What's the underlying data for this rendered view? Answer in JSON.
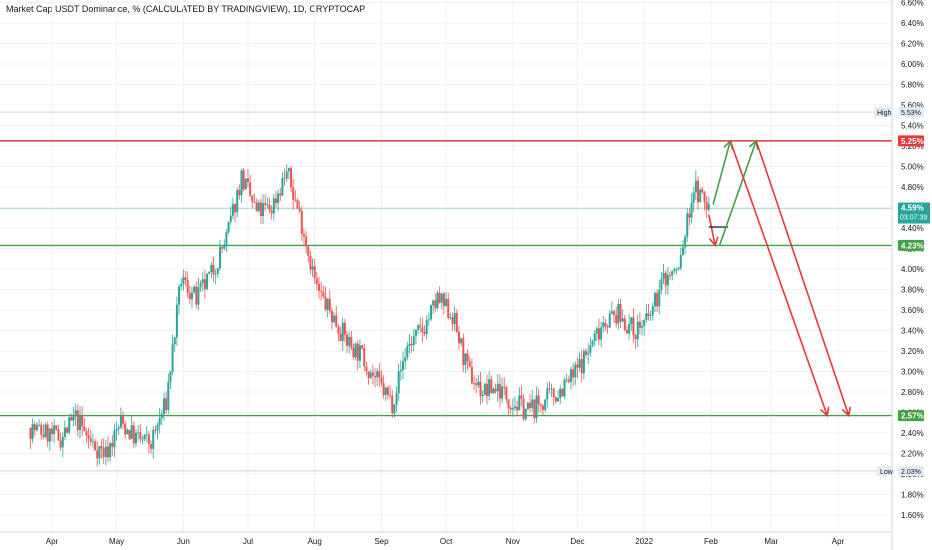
{
  "title": "Market Cap USDT Dominance, % (CALCULATED BY TRADINGVIEW), 1D, CRYPTOCAP",
  "colors": {
    "up": "#26a69a",
    "down": "#ef5350",
    "resistance": "#e53935",
    "support": "#43a047",
    "arrow_down": "#e53935",
    "arrow_up": "#43a047",
    "grid": "#eef0f3",
    "axis_border": "#d1d4dc",
    "high_low_line": "#c8d6e5",
    "current_tag": "#26a69a"
  },
  "chart_data": {
    "type": "candlestick",
    "x_tick_labels": [
      "Apr",
      "May",
      "Jun",
      "Jul",
      "Aug",
      "Sep",
      "Oct",
      "Nov",
      "Dec",
      "2022",
      "Feb",
      "Mar",
      "Apr"
    ],
    "y_tick_labels": [
      "1.60%",
      "1.80%",
      "2.00%",
      "2.20%",
      "2.40%",
      "2.60%",
      "2.80%",
      "3.00%",
      "3.20%",
      "3.40%",
      "3.60%",
      "3.80%",
      "4.00%",
      "4.20%",
      "4.40%",
      "4.60%",
      "4.80%",
      "5.00%",
      "5.20%",
      "5.40%",
      "5.60%",
      "5.80%",
      "6.00%",
      "6.20%",
      "6.40%",
      "6.60%"
    ],
    "y_range": [
      1.45,
      6.65
    ],
    "close_path": [
      {
        "date": "2021-03-22",
        "close": 2.45
      },
      {
        "date": "2021-04-05",
        "close": 2.35
      },
      {
        "date": "2021-04-12",
        "close": 2.55
      },
      {
        "date": "2021-04-19",
        "close": 2.3
      },
      {
        "date": "2021-04-26",
        "close": 2.2
      },
      {
        "date": "2021-05-03",
        "close": 2.5
      },
      {
        "date": "2021-05-10",
        "close": 2.35
      },
      {
        "date": "2021-05-17",
        "close": 2.3
      },
      {
        "date": "2021-05-24",
        "close": 2.7
      },
      {
        "date": "2021-05-31",
        "close": 3.9
      },
      {
        "date": "2021-06-07",
        "close": 3.7
      },
      {
        "date": "2021-06-14",
        "close": 3.95
      },
      {
        "date": "2021-06-21",
        "close": 4.3
      },
      {
        "date": "2021-06-28",
        "close": 4.9
      },
      {
        "date": "2021-07-05",
        "close": 4.55
      },
      {
        "date": "2021-07-12",
        "close": 4.6
      },
      {
        "date": "2021-07-19",
        "close": 4.95
      },
      {
        "date": "2021-07-26",
        "close": 4.45
      },
      {
        "date": "2021-08-02",
        "close": 3.8
      },
      {
        "date": "2021-08-09",
        "close": 3.55
      },
      {
        "date": "2021-08-16",
        "close": 3.3
      },
      {
        "date": "2021-08-23",
        "close": 3.15
      },
      {
        "date": "2021-08-30",
        "close": 2.9
      },
      {
        "date": "2021-09-06",
        "close": 2.7
      },
      {
        "date": "2021-09-13",
        "close": 3.25
      },
      {
        "date": "2021-09-20",
        "close": 3.4
      },
      {
        "date": "2021-09-27",
        "close": 3.7
      },
      {
        "date": "2021-10-04",
        "close": 3.55
      },
      {
        "date": "2021-10-11",
        "close": 3.0
      },
      {
        "date": "2021-10-18",
        "close": 2.8
      },
      {
        "date": "2021-10-25",
        "close": 2.85
      },
      {
        "date": "2021-11-01",
        "close": 2.7
      },
      {
        "date": "2021-11-08",
        "close": 2.62
      },
      {
        "date": "2021-11-15",
        "close": 2.7
      },
      {
        "date": "2021-11-22",
        "close": 2.8
      },
      {
        "date": "2021-11-29",
        "close": 2.95
      },
      {
        "date": "2021-12-06",
        "close": 3.2
      },
      {
        "date": "2021-12-13",
        "close": 3.5
      },
      {
        "date": "2021-12-20",
        "close": 3.55
      },
      {
        "date": "2021-12-27",
        "close": 3.4
      },
      {
        "date": "2022-01-03",
        "close": 3.5
      },
      {
        "date": "2022-01-10",
        "close": 3.9
      },
      {
        "date": "2022-01-17",
        "close": 4.0
      },
      {
        "date": "2022-01-24",
        "close": 4.8
      },
      {
        "date": "2022-01-31",
        "close": 4.59
      }
    ],
    "levels": {
      "high": {
        "label": "High",
        "value_label": "5.53%",
        "value": 5.53
      },
      "resistance": {
        "value_label": "5.25%",
        "value": 5.25
      },
      "current": {
        "value_label": "4.59%",
        "countdown": "03:07:39",
        "value": 4.59
      },
      "support_upper": {
        "value_label": "4.23%",
        "value": 4.23
      },
      "support_lower": {
        "value_label": "2.57%",
        "value": 2.57
      },
      "low": {
        "label": "Low",
        "value_label": "2.03%",
        "value": 2.03
      }
    },
    "projections": [
      {
        "kind": "down",
        "from": {
          "date": "2022-01-31",
          "value": 4.53
        },
        "to": {
          "date": "2022-02-03",
          "value": 4.23
        }
      },
      {
        "kind": "flat",
        "from": {
          "date": "2022-01-31",
          "value": 4.41
        },
        "to": {
          "date": "2022-02-09",
          "value": 4.41
        }
      },
      {
        "kind": "up",
        "from": {
          "date": "2022-02-02",
          "value": 4.63
        },
        "to": {
          "date": "2022-02-10",
          "value": 5.25
        }
      },
      {
        "kind": "up",
        "from": {
          "date": "2022-02-05",
          "value": 4.23
        },
        "to": {
          "date": "2022-02-22",
          "value": 5.25
        }
      },
      {
        "kind": "down",
        "from": {
          "date": "2022-02-10",
          "value": 5.25
        },
        "to": {
          "date": "2022-03-27",
          "value": 2.57
        }
      },
      {
        "kind": "down",
        "from": {
          "date": "2022-02-22",
          "value": 5.25
        },
        "to": {
          "date": "2022-04-06",
          "value": 2.57
        }
      }
    ],
    "grid": true,
    "legend": "none"
  }
}
